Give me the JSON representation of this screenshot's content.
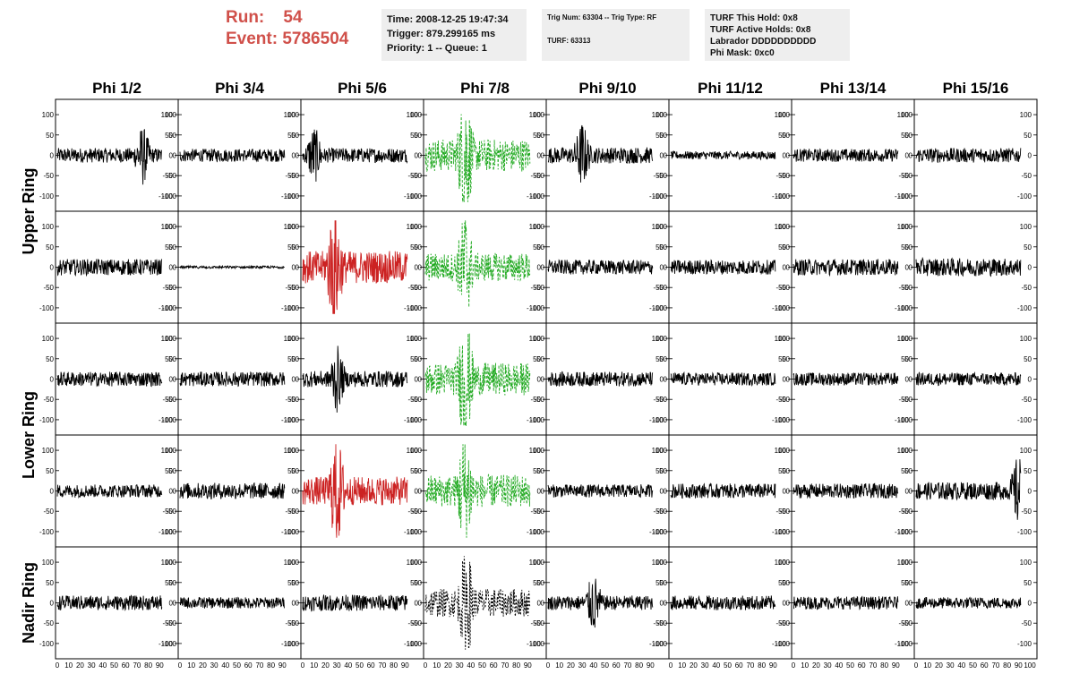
{
  "header": {
    "run_label": "Run:",
    "run_value": "54",
    "event_label": "Event:",
    "event_value": "5786504",
    "time_info": [
      "Time: 2008-12-25 19:47:34",
      "Trigger: 879.299165 ms",
      "Priority: 1 -- Queue: 1"
    ],
    "trig_info": [
      "Trig Num: 63304 -- Trig Type: RF",
      "TURF: 63313"
    ],
    "turf_info": [
      "TURF This Hold: 0x8",
      "TURF Active Holds: 0x8",
      "Labrador DDDDDDDDDD",
      "Phi Mask: 0xc0"
    ]
  },
  "chart_data": {
    "type": "line",
    "columns": [
      "Phi 1/2",
      "Phi 3/4",
      "Phi 5/6",
      "Phi 7/8",
      "Phi 9/10",
      "Phi 11/12",
      "Phi 13/14",
      "Phi 15/16"
    ],
    "rows": [
      "Upper Ring",
      "Upper Ring",
      "Lower Ring",
      "Lower Ring",
      "Nadir Ring"
    ],
    "row_labels": [
      "Upper Ring",
      "Lower Ring",
      "Nadir Ring"
    ],
    "ylim": [
      -120,
      120
    ],
    "xlim": [
      0,
      100
    ],
    "yticks": [
      "100",
      "50",
      "0",
      "-50",
      "-100"
    ],
    "xticks": [
      "0",
      "10",
      "20",
      "30",
      "40",
      "50",
      "60",
      "70",
      "80",
      "90",
      "100"
    ],
    "colors": {
      "normal": "#000000",
      "triggered": "#cc2222",
      "phi_masked": "#22aa22",
      "nadir_masked": "#000000"
    },
    "panel_styles": [
      [
        "normal",
        "normal",
        "normal",
        "masked",
        "normal",
        "normal",
        "normal",
        "normal"
      ],
      [
        "normal",
        "flat",
        "triggered",
        "masked",
        "normal",
        "normal",
        "normal",
        "normal"
      ],
      [
        "normal",
        "normal",
        "normal",
        "masked",
        "normal",
        "normal",
        "normal",
        "normal"
      ],
      [
        "normal",
        "normal",
        "triggered",
        "masked",
        "normal",
        "normal",
        "normal",
        "normal"
      ],
      [
        "normal",
        "normal",
        "normal",
        "dashed-black",
        "normal",
        "normal",
        "normal",
        "normal"
      ]
    ],
    "amplitudes": [
      [
        18,
        16,
        18,
        40,
        20,
        10,
        16,
        18
      ],
      [
        20,
        3,
        40,
        35,
        18,
        18,
        20,
        22
      ],
      [
        18,
        18,
        20,
        40,
        18,
        16,
        16,
        16
      ],
      [
        16,
        20,
        35,
        40,
        16,
        18,
        18,
        22
      ],
      [
        18,
        14,
        20,
        35,
        18,
        18,
        16,
        14
      ]
    ],
    "spike_positions": [
      [
        75,
        null,
        10,
        35,
        30,
        null,
        null,
        null
      ],
      [
        null,
        null,
        28,
        35,
        null,
        null,
        null,
        null
      ],
      [
        null,
        null,
        30,
        35,
        null,
        null,
        null,
        null
      ],
      [
        null,
        null,
        30,
        35,
        null,
        null,
        null,
        90
      ],
      [
        null,
        null,
        null,
        36,
        40,
        null,
        null,
        null
      ]
    ]
  }
}
